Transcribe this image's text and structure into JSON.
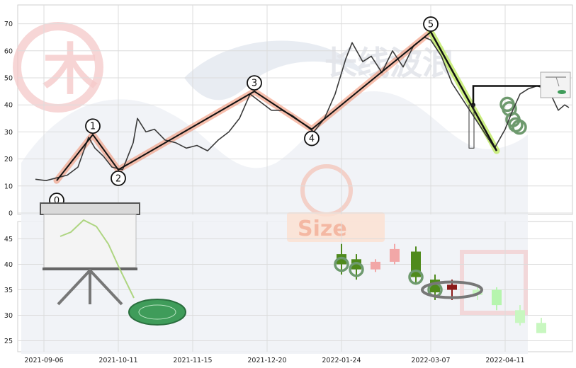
{
  "chart_data": [
    {
      "type": "line",
      "panel": "price",
      "x_tick_labels": [
        "2021-09-06",
        "2021-10-11",
        "2021-11-15",
        "2021-12-20",
        "2022-01-24",
        "2022-03-07",
        "2022-04-11"
      ],
      "y_ticks": [
        0,
        10,
        20,
        30,
        40,
        50,
        60,
        70
      ],
      "ylim": [
        0,
        74
      ],
      "grid": true,
      "watermark_text": "长线波浪",
      "wave_points": [
        {
          "label": "0",
          "date": "2021-09-12",
          "value": 12
        },
        {
          "label": "1",
          "date": "2021-09-29",
          "value": 29
        },
        {
          "label": "2",
          "date": "2021-10-11",
          "value": 16
        },
        {
          "label": "3",
          "date": "2021-12-14",
          "value": 45
        },
        {
          "label": "4",
          "date": "2022-01-10",
          "value": 31
        },
        {
          "label": "5",
          "date": "2022-03-07",
          "value": 67
        }
      ],
      "correction_leg": {
        "from": {
          "date": "2022-03-07",
          "value": 67
        },
        "to": {
          "date": "2022-04-07",
          "value": 23
        }
      },
      "target_level": {
        "from_date": "2022-03-27",
        "to_date": "2022-04-28",
        "value": 47
      },
      "price_series": {
        "name": "price",
        "points": [
          [
            "2021-09-02",
            12.5
          ],
          [
            "2021-09-07",
            12
          ],
          [
            "2021-09-12",
            13
          ],
          [
            "2021-09-17",
            14
          ],
          [
            "2021-09-22",
            17
          ],
          [
            "2021-09-27",
            28
          ],
          [
            "2021-09-30",
            24
          ],
          [
            "2021-10-04",
            21
          ],
          [
            "2021-10-08",
            17
          ],
          [
            "2021-10-13",
            16
          ],
          [
            "2021-10-18",
            26
          ],
          [
            "2021-10-20",
            35
          ],
          [
            "2021-10-24",
            30
          ],
          [
            "2021-10-28",
            31
          ],
          [
            "2021-11-02",
            27
          ],
          [
            "2021-11-07",
            26
          ],
          [
            "2021-11-12",
            24
          ],
          [
            "2021-11-17",
            25
          ],
          [
            "2021-11-22",
            23
          ],
          [
            "2021-11-27",
            27
          ],
          [
            "2021-12-02",
            30
          ],
          [
            "2021-12-07",
            35
          ],
          [
            "2021-12-12",
            44
          ],
          [
            "2021-12-17",
            41
          ],
          [
            "2021-12-22",
            38
          ],
          [
            "2021-12-27",
            38
          ],
          [
            "2022-01-01",
            36
          ],
          [
            "2022-01-06",
            33
          ],
          [
            "2022-01-11",
            30
          ],
          [
            "2022-01-16",
            35
          ],
          [
            "2022-01-21",
            44
          ],
          [
            "2022-01-26",
            57
          ],
          [
            "2022-01-29",
            63
          ],
          [
            "2022-02-03",
            56
          ],
          [
            "2022-02-07",
            58
          ],
          [
            "2022-02-12",
            52
          ],
          [
            "2022-02-17",
            60
          ],
          [
            "2022-02-22",
            54
          ],
          [
            "2022-02-27",
            62
          ],
          [
            "2022-03-04",
            65
          ],
          [
            "2022-03-07",
            64
          ],
          [
            "2022-03-12",
            58
          ],
          [
            "2022-03-17",
            48
          ],
          [
            "2022-03-22",
            42
          ],
          [
            "2022-03-27",
            36
          ],
          [
            "2022-04-01",
            30
          ],
          [
            "2022-04-06",
            24
          ],
          [
            "2022-04-11",
            31
          ],
          [
            "2022-04-14",
            37
          ],
          [
            "2022-04-18",
            44
          ],
          [
            "2022-04-22",
            46
          ],
          [
            "2022-04-26",
            47
          ],
          [
            "2022-04-30",
            46
          ],
          [
            "2022-05-03",
            43
          ],
          [
            "2022-05-06",
            38
          ],
          [
            "2022-05-09",
            40
          ],
          [
            "2022-05-11",
            39
          ]
        ]
      }
    },
    {
      "type": "candlestick",
      "panel": "detail",
      "x_tick_labels": [
        "2021-09-06",
        "2021-10-11",
        "2021-11-15",
        "2021-12-20",
        "2022-01-24",
        "2022-03-07",
        "2022-04-11"
      ],
      "y_ticks": [
        25,
        30,
        35,
        40,
        45
      ],
      "ylim": [
        23,
        49
      ],
      "grid": true,
      "candles": [
        {
          "date": "2022-01-24",
          "open": 42,
          "close": 40,
          "high": 44,
          "low": 38,
          "color": "#4f8a1c"
        },
        {
          "date": "2022-01-31",
          "open": 41,
          "close": 39,
          "high": 42,
          "low": 37,
          "color": "#4f8a1c"
        },
        {
          "date": "2022-02-09",
          "open": 39,
          "close": 40.5,
          "high": 41,
          "low": 38.5,
          "color": "#f2a7a7"
        },
        {
          "date": "2022-02-18",
          "open": 40.5,
          "close": 43,
          "high": 44,
          "low": 40,
          "color": "#f2a7a7"
        },
        {
          "date": "2022-02-28",
          "open": 42.5,
          "close": 37.5,
          "high": 43.5,
          "low": 36,
          "color": "#4f8a1c"
        },
        {
          "date": "2022-03-09",
          "open": 37,
          "close": 34.5,
          "high": 38,
          "low": 33,
          "color": "#4f8a1c"
        },
        {
          "date": "2022-03-17",
          "open": 35,
          "close": 36,
          "high": 37,
          "low": 33,
          "color": "#8b1a1a"
        },
        {
          "date": "2022-03-29",
          "open": 35,
          "close": 34,
          "high": 36,
          "low": 33,
          "color": "#c8f7c0"
        },
        {
          "date": "2022-04-07",
          "open": 35,
          "close": 32,
          "high": 35.5,
          "low": 31,
          "color": "#b6f5ae"
        },
        {
          "date": "2022-04-18",
          "open": 31,
          "close": 28.5,
          "high": 32,
          "low": 28,
          "color": "#c8f7c0"
        },
        {
          "date": "2022-04-28",
          "open": 28.5,
          "close": 26.5,
          "high": 29.5,
          "low": 26.5,
          "color": "#c8f7c0"
        }
      ]
    }
  ],
  "logo": {
    "text": "Size"
  }
}
